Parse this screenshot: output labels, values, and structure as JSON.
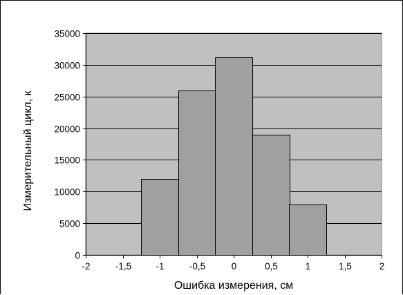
{
  "chart_data": {
    "type": "bar",
    "x_centers": [
      -1,
      -0.5,
      0,
      0.5,
      1
    ],
    "bin_width": 0.5,
    "values": [
      12000,
      26000,
      31200,
      19000,
      8000
    ],
    "xlabel": "Ошибка измерения, см",
    "ylabel": "Измерительный цикл, к",
    "xlim": [
      -2,
      2
    ],
    "ylim": [
      0,
      35000
    ],
    "x_ticks": [
      -2,
      -1.5,
      -1,
      -0.5,
      0,
      0.5,
      1,
      1.5,
      2
    ],
    "x_tick_labels": [
      "-2",
      "-1,5",
      "-1",
      "-0,5",
      "0",
      "0,5",
      "1",
      "1,5",
      "2"
    ],
    "y_ticks": [
      0,
      5000,
      10000,
      15000,
      20000,
      25000,
      30000,
      35000
    ],
    "y_tick_labels": [
      "0",
      "5000",
      "10000",
      "15000",
      "20000",
      "25000",
      "30000",
      "35000"
    ],
    "grid": "horizontal",
    "legend": "none",
    "colors": {
      "plot_background": "#c0c0c0",
      "bar_fill": "#a0a0a0",
      "bar_stroke": "#000000",
      "grid": "#000000"
    }
  }
}
